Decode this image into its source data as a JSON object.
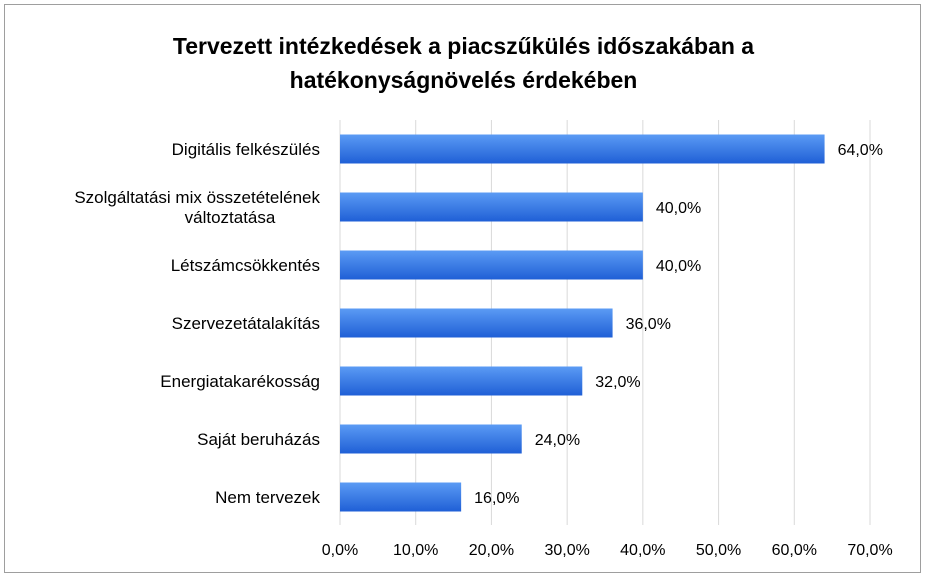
{
  "chart_data": {
    "type": "bar",
    "orientation": "horizontal",
    "title_lines": [
      "Tervezett intézkedések a piacszűkülés időszakában a",
      "hatékonyságnövelés érdekében"
    ],
    "categories": [
      [
        "Digitális felkészülés"
      ],
      [
        "Szolgáltatási mix összetételének",
        "változtatása"
      ],
      [
        "Létszámcsökkentés"
      ],
      [
        "Szervezetátalakítás"
      ],
      [
        "Energiatakarékosság"
      ],
      [
        "Saját beruházás"
      ],
      [
        "Nem tervezek"
      ]
    ],
    "values": [
      64.0,
      40.0,
      40.0,
      36.0,
      32.0,
      24.0,
      16.0
    ],
    "value_labels": [
      "64,0%",
      "40,0%",
      "40,0%",
      "36,0%",
      "32,0%",
      "24,0%",
      "16,0%"
    ],
    "xlim": [
      0,
      70
    ],
    "x_ticks": [
      0,
      10,
      20,
      30,
      40,
      50,
      60,
      70
    ],
    "x_tick_labels": [
      "0,0%",
      "10,0%",
      "20,0%",
      "30,0%",
      "40,0%",
      "50,0%",
      "60,0%",
      "70,0%"
    ],
    "xlabel": "",
    "ylabel": "",
    "grid": "vertical",
    "legend": "none",
    "colors": {
      "bar_top": "#5b9bf4",
      "bar_bottom": "#1f5fd6",
      "grid": "#d9d9d9"
    }
  }
}
